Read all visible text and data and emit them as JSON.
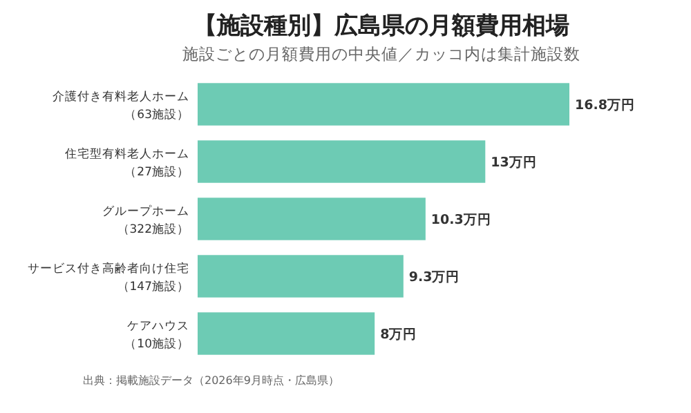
{
  "chart_data": {
    "type": "bar",
    "orientation": "horizontal",
    "title": "【施設種別】広島県の月額費用相場",
    "subtitle": "施設ごとの月額費用の中央値／カッコ内は集計施設数",
    "categories": [
      "介護付き有料老人ホーム（63施設）",
      "住宅型有料老人ホーム（27施設）",
      "グループホーム（322施設）",
      "サービス付き高齢者向け住宅（147施設）",
      "ケアハウス（10施設）"
    ],
    "values": [
      16.8,
      13,
      10.3,
      9.3,
      8
    ],
    "color": "#6dcbb4",
    "value_labels": [
      "16.8万円",
      "13万円",
      "10.3万円",
      "9.3万円",
      "8万円"
    ],
    "annotations": [
      "出典：掲載施設データ（2026年9月時点・広島県）"
    ]
  }
}
